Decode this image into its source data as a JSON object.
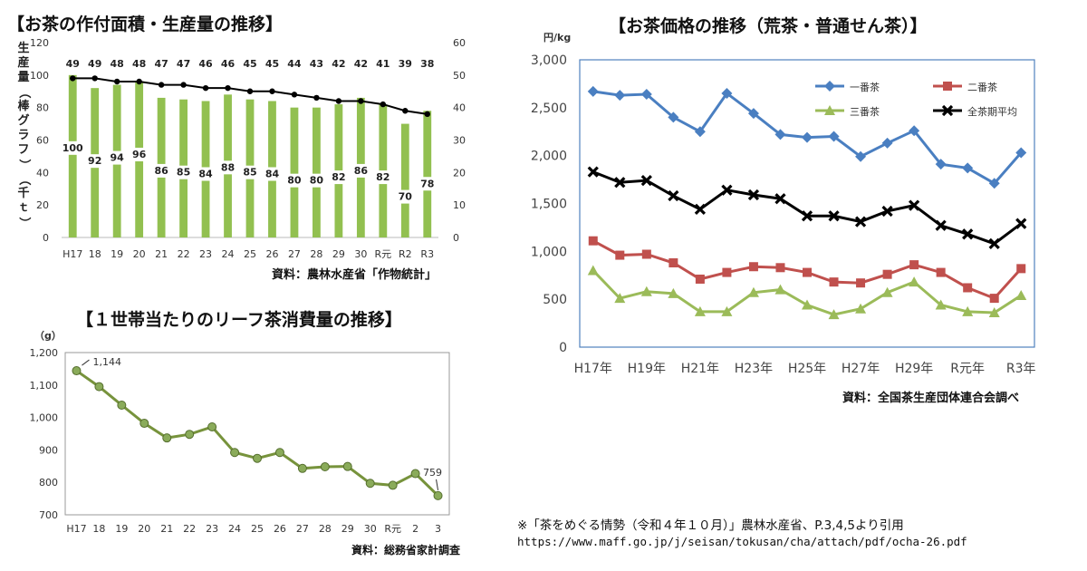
{
  "charts": {
    "area": {
      "title": "【お茶の作付面積・生産量の推移】",
      "source": "資料：農林水産省「作物統計」",
      "ylabel_chars": [
        "生",
        "産",
        "量",
        "（",
        "棒",
        "グ",
        "ラ",
        "フ",
        "）",
        "（",
        "千",
        "ｔ",
        "）"
      ]
    },
    "price": {
      "title": "【お茶価格の推移（荒茶・普通せん茶）】",
      "source": "資料：全国茶生産団体連合会調べ",
      "unit": "円/kg"
    },
    "consumption": {
      "title": "【１世帯当たりのリーフ茶消費量の推移】",
      "source": "資料：総務省家計調査",
      "unit": "（g）"
    }
  },
  "footnote": {
    "line1": "※「茶をめぐる情勢（令和４年１０月）」農林水産省、P.3,4,5より引用",
    "line2": "https://www.maff.go.jp/j/seisan/tokusan/cha/attach/pdf/ocha-26.pdf"
  },
  "chart_data": [
    {
      "id": "area",
      "type": "bar",
      "title": "【お茶の作付面積・生産量の推移】",
      "categories": [
        "H17",
        "18",
        "19",
        "20",
        "21",
        "22",
        "23",
        "24",
        "25",
        "26",
        "27",
        "28",
        "29",
        "30",
        "R元",
        "R2",
        "R3"
      ],
      "series": [
        {
          "name": "生産量（棒グラフ）",
          "type": "bar",
          "axis": "left",
          "color": "#92c050",
          "values": [
            100,
            92,
            94,
            96,
            86,
            85,
            84,
            88,
            85,
            84,
            80,
            80,
            82,
            86,
            82,
            70,
            78
          ]
        },
        {
          "name": "作付面積",
          "type": "line",
          "axis": "right",
          "color": "#000000",
          "values": [
            49,
            49,
            48,
            48,
            47,
            47,
            46,
            46,
            45,
            45,
            44,
            43,
            42,
            42,
            41,
            39,
            38
          ]
        }
      ],
      "yleft": {
        "label": "生産量（棒グラフ）（千ｔ）",
        "lim": [
          0,
          120
        ],
        "ticks": [
          0,
          20,
          40,
          60,
          80,
          100,
          120
        ]
      },
      "yright": {
        "lim": [
          0,
          60
        ],
        "ticks": [
          0,
          10,
          20,
          30,
          40,
          50,
          60
        ]
      },
      "grid": false
    },
    {
      "id": "price",
      "type": "line",
      "title": "【お茶価格の推移（荒茶・普通せん茶）】",
      "ylabel": "円/kg",
      "x": [
        "H17",
        "H18",
        "H19",
        "H20",
        "H21",
        "H22",
        "H23",
        "H24",
        "H25",
        "H26",
        "H27",
        "H28",
        "H29",
        "H30",
        "R元",
        "R2",
        "R3"
      ],
      "x_tick_labels": [
        "H17年",
        "",
        "H19年",
        "",
        "H21年",
        "",
        "H23年",
        "",
        "H25年",
        "",
        "H27年",
        "",
        "H29年",
        "",
        "R元年",
        "",
        "R3年"
      ],
      "series": [
        {
          "name": "一番茶",
          "color": "#4a7fc1",
          "marker": "diamond",
          "values": [
            2670,
            2630,
            2640,
            2400,
            2250,
            2650,
            2440,
            2220,
            2190,
            2200,
            1990,
            2130,
            2260,
            1910,
            1870,
            1710,
            2030
          ]
        },
        {
          "name": "二番茶",
          "color": "#c0504d",
          "marker": "square",
          "values": [
            1110,
            960,
            970,
            880,
            710,
            780,
            840,
            830,
            780,
            680,
            670,
            760,
            860,
            780,
            620,
            510,
            820
          ]
        },
        {
          "name": "三番茶",
          "color": "#9bbb59",
          "marker": "triangle",
          "values": [
            800,
            510,
            580,
            560,
            370,
            370,
            570,
            600,
            440,
            340,
            400,
            570,
            680,
            440,
            370,
            360,
            540
          ]
        },
        {
          "name": "全茶期平均",
          "color": "#000000",
          "marker": "x",
          "values": [
            1830,
            1720,
            1740,
            1580,
            1440,
            1640,
            1590,
            1550,
            1370,
            1370,
            1310,
            1420,
            1480,
            1270,
            1180,
            1080,
            1290
          ]
        }
      ],
      "ylim": [
        0,
        3000
      ],
      "yticks": [
        0,
        500,
        1000,
        1500,
        2000,
        2500,
        3000
      ],
      "legend": "top-right",
      "grid": false
    },
    {
      "id": "consumption",
      "type": "line",
      "title": "【１世帯当たりのリーフ茶消費量の推移】",
      "ylabel": "（g）",
      "x": [
        "H17",
        "18",
        "19",
        "20",
        "21",
        "22",
        "23",
        "24",
        "25",
        "26",
        "27",
        "28",
        "29",
        "30",
        "R元",
        "2",
        "3"
      ],
      "series": [
        {
          "name": "リーフ茶消費量",
          "color": "#77933c",
          "marker": "circle",
          "values": [
            1144,
            1095,
            1038,
            982,
            937,
            948,
            971,
            892,
            874,
            892,
            843,
            848,
            849,
            797,
            791,
            827,
            759
          ]
        }
      ],
      "annotations": [
        {
          "index": 0,
          "text": "1,144"
        },
        {
          "index": 16,
          "text": "759"
        }
      ],
      "ylim": [
        700,
        1200
      ],
      "yticks": [
        700,
        800,
        900,
        1000,
        1100,
        1200
      ],
      "grid": false
    }
  ]
}
